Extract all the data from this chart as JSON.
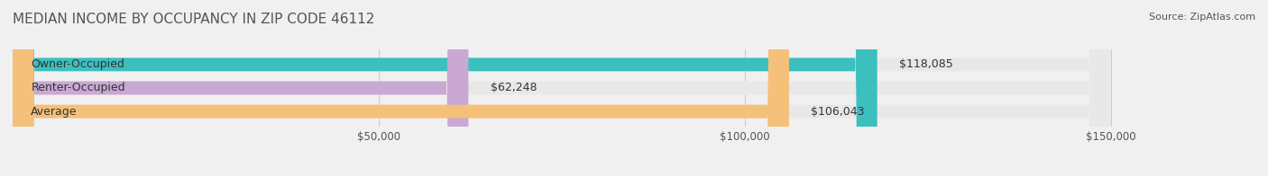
{
  "title": "MEDIAN INCOME BY OCCUPANCY IN ZIP CODE 46112",
  "source": "Source: ZipAtlas.com",
  "categories": [
    "Owner-Occupied",
    "Renter-Occupied",
    "Average"
  ],
  "values": [
    118085,
    62248,
    106043
  ],
  "bar_colors": [
    "#3bbfbf",
    "#c9a8d4",
    "#f5c07a"
  ],
  "bar_labels": [
    "$118,085",
    "$62,248",
    "$106,043"
  ],
  "xlim": [
    0,
    150000
  ],
  "xticks": [
    0,
    50000,
    100000,
    150000
  ],
  "xtick_labels": [
    "$50,000",
    "$100,000",
    "$150,000"
  ],
  "bg_color": "#f0f0f0",
  "bar_bg_color": "#e8e8e8",
  "label_color": "#555555",
  "title_color": "#555555",
  "bar_height": 0.55,
  "bar_label_fontsize": 9,
  "category_fontsize": 9,
  "title_fontsize": 11
}
